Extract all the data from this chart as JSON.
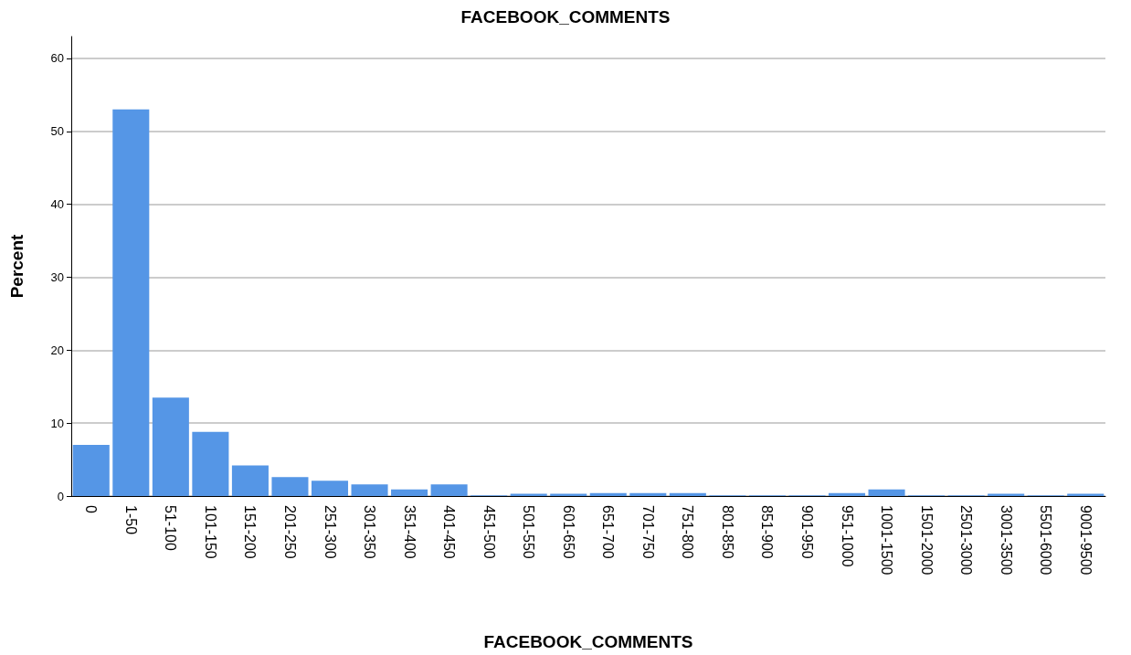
{
  "chart_data": {
    "type": "bar",
    "title": "FACEBOOK_COMMENTS",
    "xlabel": "FACEBOOK_COMMENTS",
    "ylabel": "Percent",
    "categories": [
      "0",
      "1-50",
      "51-100",
      "101-150",
      "151-200",
      "201-250",
      "251-300",
      "301-350",
      "351-400",
      "401-450",
      "451-500",
      "501-550",
      "601-650",
      "651-700",
      "701-750",
      "751-800",
      "801-850",
      "851-900",
      "901-950",
      "951-1000",
      "1001-1500",
      "1501-2000",
      "2501-3000",
      "3001-3500",
      "5501-6000",
      "9001-9500"
    ],
    "values": [
      7.0,
      53.0,
      13.5,
      8.8,
      4.2,
      2.6,
      2.1,
      1.6,
      0.9,
      1.6,
      0.1,
      0.3,
      0.3,
      0.4,
      0.4,
      0.4,
      0.1,
      0.1,
      0.1,
      0.4,
      0.9,
      0.1,
      0.1,
      0.3,
      0.1,
      0.3
    ],
    "color": "#5596e6",
    "ylim": [
      0,
      63
    ],
    "yticks": [
      0,
      10,
      20,
      30,
      40,
      50,
      60
    ],
    "grid": "y"
  }
}
